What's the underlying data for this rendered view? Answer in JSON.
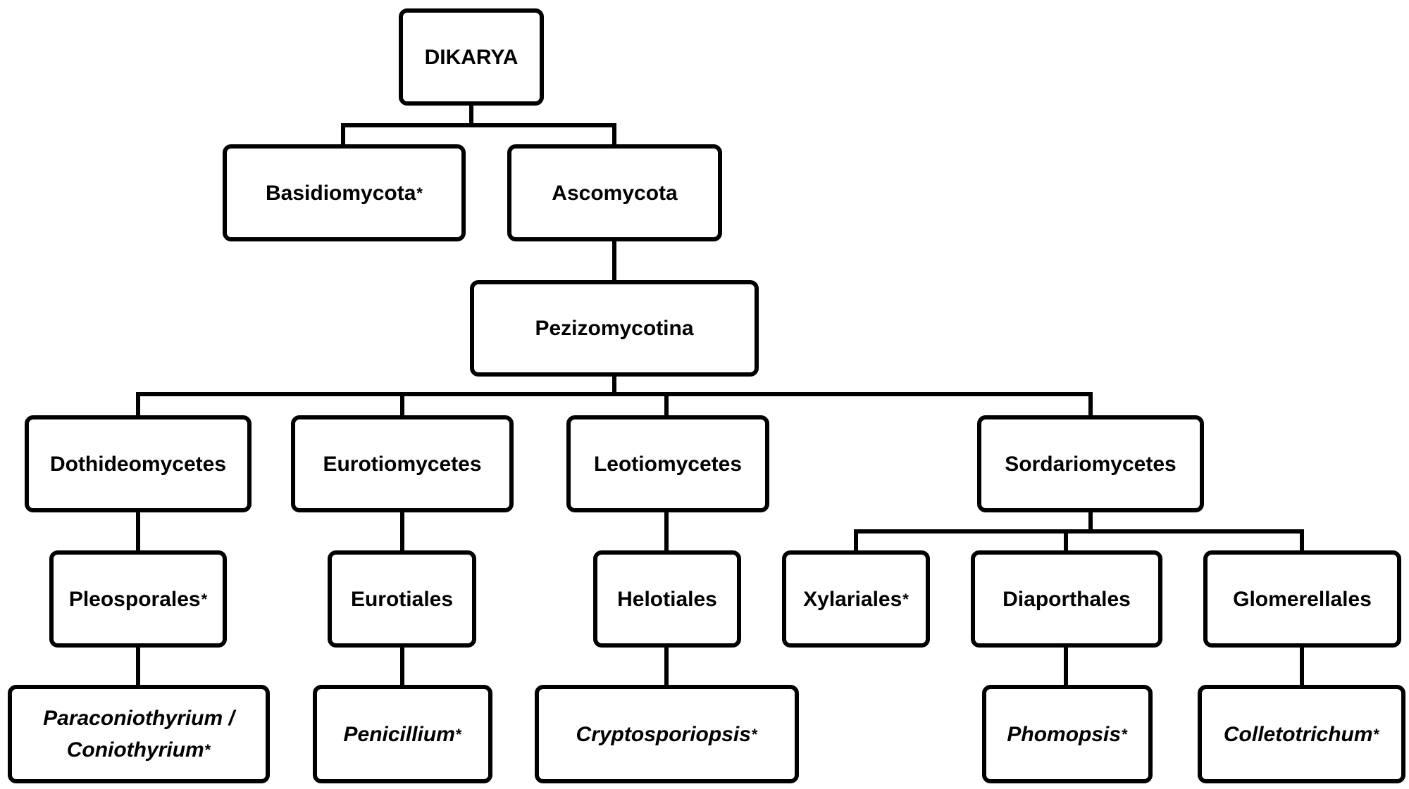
{
  "nodes": {
    "dikarya": {
      "text": "DIKARYA"
    },
    "basidiomycota": {
      "text": "Basidiomycota",
      "marker": "*"
    },
    "ascomycota": {
      "text": "Ascomycota"
    },
    "pezizomycotina": {
      "text": "Pezizomycotina"
    },
    "dothideomycetes": {
      "text": "Dothideomycetes"
    },
    "eurotiomycetes": {
      "text": "Eurotiomycetes"
    },
    "leotiomycetes": {
      "text": "Leotiomycetes"
    },
    "sordariomycetes": {
      "text": "Sordariomycetes"
    },
    "pleosporales": {
      "text": "Pleosporales",
      "marker": "*"
    },
    "eurotiales": {
      "text": "Eurotiales"
    },
    "helotiales": {
      "text": "Helotiales"
    },
    "xylariales": {
      "text": "Xylariales",
      "marker": "*"
    },
    "diaporthales": {
      "text": "Diaporthales"
    },
    "glomerellales": {
      "text": "Glomerellales"
    },
    "paraconiothyrium": {
      "line1": "Paraconiothyrium /",
      "line2": "Coniothyrium",
      "marker": "*"
    },
    "penicillium": {
      "text": "Penicillium",
      "marker": "*"
    },
    "cryptosporiopsis": {
      "text": "Cryptosporiopsis",
      "marker": "*"
    },
    "phomopsis": {
      "text": "Phomopsis",
      "marker": "*"
    },
    "colletotrichum": {
      "text": "Colletotrichum",
      "marker": "*"
    }
  }
}
